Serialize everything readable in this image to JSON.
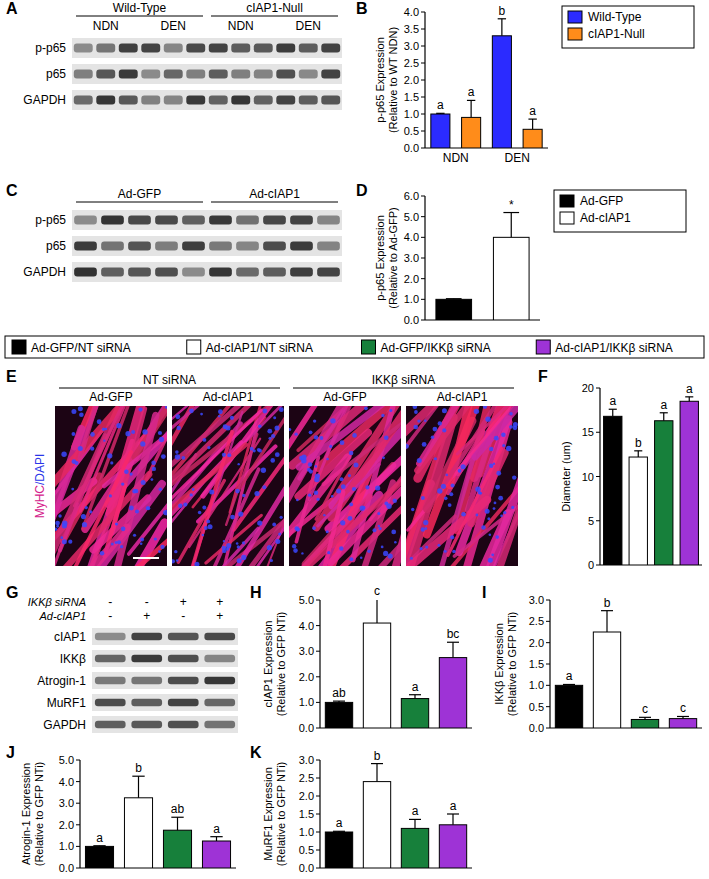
{
  "chart_data": [
    {
      "panel": "B",
      "type": "bar",
      "categories": [
        "NDN",
        "DEN"
      ],
      "y_label": [
        "p-p65 Expression",
        "(Relative to WT NDN)"
      ],
      "ylim": [
        0,
        4
      ],
      "yticks": [
        {
          "value": 0,
          "label": "0.0"
        },
        0.5,
        {
          "value": 1,
          "label": "1.0"
        },
        1.5,
        {
          "value": 2,
          "label": "2.0"
        },
        2.5,
        {
          "value": 3,
          "label": "3.0"
        },
        3.5,
        {
          "value": 4,
          "label": "4.0"
        }
      ],
      "legend": "top-right",
      "series": [
        {
          "name": "Wild-Type",
          "color": "#2b2bff",
          "values": [
            1.0,
            3.3
          ],
          "errors": [
            0.02,
            0.5
          ],
          "letters": [
            "a",
            "b"
          ]
        },
        {
          "name": "cIAP1-Null",
          "color": "#ff8c1a",
          "values": [
            0.9,
            0.55
          ],
          "errors": [
            0.5,
            0.3
          ],
          "letters": [
            "a",
            "a"
          ]
        }
      ]
    },
    {
      "panel": "D",
      "type": "bar",
      "categories": [
        null
      ],
      "y_label": [
        "p-p65 Expression",
        "(Relative to Ad-GFP)"
      ],
      "ylim": [
        0,
        6
      ],
      "yticks": [
        {
          "value": 0,
          "label": "0.0"
        },
        {
          "value": 1,
          "label": "1.0"
        },
        {
          "value": 2,
          "label": "2.0"
        },
        {
          "value": 3,
          "label": "3.0"
        },
        {
          "value": 4,
          "label": "4.0"
        },
        {
          "value": 5,
          "label": "5.0"
        },
        {
          "value": 6,
          "label": "6.0"
        }
      ],
      "legend": "top-right",
      "series": [
        {
          "name": "Ad-GFP",
          "color": "#000000",
          "values": [
            1.0
          ],
          "errors": [
            0.03
          ]
        },
        {
          "name": "Ad-cIAP1",
          "color": "#ffffff",
          "values": [
            4.0
          ],
          "errors": [
            1.2
          ],
          "letters": [
            "*"
          ]
        }
      ]
    },
    {
      "panel": "F",
      "type": "bar",
      "categories": [
        null
      ],
      "y_label": [
        "Diameter (um)"
      ],
      "ylim": [
        0,
        20
      ],
      "yticks": [
        0,
        5,
        10,
        15,
        20
      ],
      "legend": "top",
      "series": [
        {
          "name": "Ad-GFP/NT siRNA",
          "color": "#000000",
          "values": [
            16.8
          ],
          "errors": [
            0.8
          ],
          "letters": [
            "a"
          ]
        },
        {
          "name": "Ad-cIAP1/NT siRNA",
          "color": "#ffffff",
          "values": [
            12.2
          ],
          "errors": [
            0.7
          ],
          "letters": [
            "b"
          ]
        },
        {
          "name": "Ad-GFP/IKKβ siRNA",
          "color": "#17803b",
          "values": [
            16.3
          ],
          "errors": [
            0.9
          ],
          "letters": [
            "a"
          ]
        },
        {
          "name": "Ad-cIAP1/IKKβ siRNA",
          "color": "#9e33d6",
          "values": [
            18.5
          ],
          "errors": [
            0.5
          ],
          "letters": [
            "a"
          ]
        }
      ]
    },
    {
      "panel": "H",
      "type": "bar",
      "categories": [
        null
      ],
      "y_label": [
        "cIAP1 Expression",
        "(Relative to GFP NTi)"
      ],
      "ylim": [
        0,
        5
      ],
      "yticks": [
        {
          "value": 0,
          "label": "0.0"
        },
        {
          "value": 1,
          "label": "1.0"
        },
        {
          "value": 2,
          "label": "2.0"
        },
        {
          "value": 3,
          "label": "3.0"
        },
        {
          "value": 4,
          "label": "4.0"
        },
        {
          "value": 5,
          "label": "5.0"
        }
      ],
      "series": [
        {
          "color": "#000000",
          "values": [
            1.0
          ],
          "errors": [
            0.05
          ],
          "letters": [
            "ab"
          ]
        },
        {
          "color": "#ffffff",
          "values": [
            4.1
          ],
          "errors": [
            0.95
          ],
          "letters": [
            "c"
          ]
        },
        {
          "color": "#17803b",
          "values": [
            1.15
          ],
          "errors": [
            0.15
          ],
          "letters": [
            "a"
          ]
        },
        {
          "color": "#9e33d6",
          "values": [
            2.75
          ],
          "errors": [
            0.6
          ],
          "letters": [
            "bc"
          ]
        }
      ]
    },
    {
      "panel": "I",
      "type": "bar",
      "categories": [
        null
      ],
      "y_label": [
        "IKKβ Expression",
        "(Relative to GFP NTi)"
      ],
      "ylim": [
        0,
        3
      ],
      "yticks": [
        {
          "value": 0,
          "label": "0.0"
        },
        0.5,
        {
          "value": 1,
          "label": "1.0"
        },
        1.5,
        {
          "value": 2,
          "label": "2.0"
        },
        2.5,
        {
          "value": 3,
          "label": "3.0"
        }
      ],
      "series": [
        {
          "color": "#000000",
          "values": [
            1.0
          ],
          "errors": [
            0.02
          ],
          "letters": [
            "a"
          ]
        },
        {
          "color": "#ffffff",
          "values": [
            2.25
          ],
          "errors": [
            0.5
          ],
          "letters": [
            "b"
          ]
        },
        {
          "color": "#17803b",
          "values": [
            0.2
          ],
          "errors": [
            0.05
          ],
          "letters": [
            "c"
          ]
        },
        {
          "color": "#9e33d6",
          "values": [
            0.22
          ],
          "errors": [
            0.05
          ],
          "letters": [
            "c"
          ]
        }
      ]
    },
    {
      "panel": "J",
      "type": "bar",
      "categories": [
        null
      ],
      "y_label": [
        "Atrogin-1 Expression",
        "(Relative to GFP NTi)"
      ],
      "ylim": [
        0,
        5
      ],
      "yticks": [
        {
          "value": 0,
          "label": "0.0"
        },
        {
          "value": 1,
          "label": "1.0"
        },
        {
          "value": 2,
          "label": "2.0"
        },
        {
          "value": 3,
          "label": "3.0"
        },
        {
          "value": 4,
          "label": "4.0"
        },
        {
          "value": 5,
          "label": "5.0"
        }
      ],
      "series": [
        {
          "color": "#000000",
          "values": [
            1.0
          ],
          "errors": [
            0.03
          ],
          "letters": [
            "a"
          ]
        },
        {
          "color": "#ffffff",
          "values": [
            3.25
          ],
          "errors": [
            1.0
          ],
          "letters": [
            "b"
          ]
        },
        {
          "color": "#17803b",
          "values": [
            1.75
          ],
          "errors": [
            0.6
          ],
          "letters": [
            "ab"
          ]
        },
        {
          "color": "#9e33d6",
          "values": [
            1.25
          ],
          "errors": [
            0.2
          ],
          "letters": [
            "a"
          ]
        }
      ]
    },
    {
      "panel": "K",
      "type": "bar",
      "categories": [
        null
      ],
      "y_label": [
        "MuRF1 Expression",
        "(Relative to GFP NTi)"
      ],
      "ylim": [
        0,
        3
      ],
      "yticks": [
        {
          "value": 0,
          "label": "0.0"
        },
        0.5,
        {
          "value": 1,
          "label": "1.0"
        },
        1.5,
        {
          "value": 2,
          "label": "2.0"
        },
        2.5,
        {
          "value": 3,
          "label": "3.0"
        }
      ],
      "series": [
        {
          "color": "#000000",
          "values": [
            1.0
          ],
          "errors": [
            0.02
          ],
          "letters": [
            "a"
          ]
        },
        {
          "color": "#ffffff",
          "values": [
            2.4
          ],
          "errors": [
            0.5
          ],
          "letters": [
            "b"
          ]
        },
        {
          "color": "#17803b",
          "values": [
            1.1
          ],
          "errors": [
            0.25
          ],
          "letters": [
            "a"
          ]
        },
        {
          "color": "#9e33d6",
          "values": [
            1.2
          ],
          "errors": [
            0.3
          ],
          "letters": [
            "a"
          ]
        }
      ]
    }
  ],
  "blots": [
    {
      "panel": "A",
      "groups": [
        {
          "label": "Wild-Type",
          "subgroups": [
            "NDN",
            "DEN"
          ]
        },
        {
          "label": "cIAP1-Null",
          "subgroups": [
            "NDN",
            "DEN"
          ]
        }
      ],
      "lanes_per_subgroup": 3,
      "rows": [
        "p-p65",
        "p65",
        "GAPDH"
      ]
    },
    {
      "panel": "C",
      "groups": [
        {
          "label": "Ad-GFP"
        },
        {
          "label": "Ad-cIAP1"
        }
      ],
      "lanes_per_group": 5,
      "rows": [
        "p-p65",
        "p65",
        "GAPDH"
      ]
    },
    {
      "panel": "G",
      "conditions": [
        {
          "label": "IKKβ siRNA",
          "signs": [
            "-",
            "-",
            "+",
            "+"
          ]
        },
        {
          "label": "Ad-cIAP1",
          "signs": [
            "-",
            "+",
            "-",
            "+"
          ]
        }
      ],
      "rows": [
        "cIAP1",
        "IKKβ",
        "Atrogin-1",
        "MuRF1",
        "GAPDH"
      ]
    }
  ],
  "images": {
    "panel": "E",
    "groups": [
      {
        "label": "NT siRNA",
        "columns": [
          "Ad-GFP",
          "Ad-cIAP1"
        ]
      },
      {
        "label": "IKKβ siRNA",
        "columns": [
          "Ad-GFP",
          "Ad-cIAP1"
        ]
      }
    ],
    "stain": [
      "MyHC",
      "/DAPI"
    ]
  }
}
